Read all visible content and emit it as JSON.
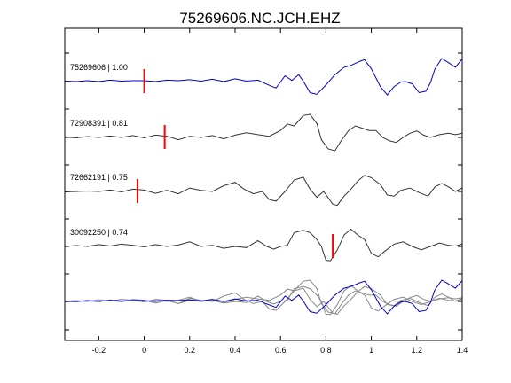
{
  "chart_data": {
    "type": "line",
    "title": "75269606.NC.JCH.EHZ",
    "xlim": [
      -0.35,
      1.4
    ],
    "x_ticks": [
      -0.2,
      0,
      0.2,
      0.4,
      0.6,
      0.8,
      1,
      1.2,
      1.4
    ],
    "x_tick_labels": [
      "-0.2",
      "0",
      "0.2",
      "0.4",
      "0.6",
      "0.8",
      "1",
      "1.2",
      "1.4"
    ],
    "grid": false,
    "colors": {
      "reference": "#0000cc",
      "others": "#333333",
      "overlay_others": "#888888",
      "pick": "#ff0000"
    },
    "series": [
      {
        "name": "75269606 | 1.00",
        "color": "#0000cc",
        "pick_time": 0.0,
        "points": [
          [
            -0.35,
            0.02
          ],
          [
            -0.3,
            0.0
          ],
          [
            -0.25,
            0.04
          ],
          [
            -0.2,
            0.0
          ],
          [
            -0.15,
            0.06
          ],
          [
            -0.1,
            0.02
          ],
          [
            -0.05,
            0.04
          ],
          [
            0.0,
            0.04
          ],
          [
            0.05,
            0.0
          ],
          [
            0.1,
            0.06
          ],
          [
            0.15,
            0.04
          ],
          [
            0.2,
            0.08
          ],
          [
            0.25,
            0.02
          ],
          [
            0.3,
            0.1
          ],
          [
            0.35,
            0.0
          ],
          [
            0.4,
            0.12
          ],
          [
            0.45,
            0.02
          ],
          [
            0.5,
            0.06
          ],
          [
            0.54,
            -0.12
          ],
          [
            0.58,
            -0.28
          ],
          [
            0.62,
            0.25
          ],
          [
            0.65,
            0.05
          ],
          [
            0.68,
            0.3
          ],
          [
            0.7,
            0.02
          ],
          [
            0.73,
            -0.48
          ],
          [
            0.76,
            -0.55
          ],
          [
            0.8,
            -0.15
          ],
          [
            0.84,
            0.3
          ],
          [
            0.88,
            0.62
          ],
          [
            0.91,
            0.7
          ],
          [
            0.95,
            0.88
          ],
          [
            0.97,
            0.95
          ],
          [
            1.0,
            0.55
          ],
          [
            1.04,
            -0.22
          ],
          [
            1.07,
            -0.58
          ],
          [
            1.1,
            -0.22
          ],
          [
            1.13,
            -0.02
          ],
          [
            1.15,
            0.0
          ],
          [
            1.18,
            -0.1
          ],
          [
            1.21,
            -0.48
          ],
          [
            1.24,
            -0.42
          ],
          [
            1.26,
            -0.05
          ],
          [
            1.28,
            0.55
          ],
          [
            1.31,
            1.0
          ],
          [
            1.34,
            0.82
          ],
          [
            1.37,
            0.62
          ],
          [
            1.4,
            0.98
          ]
        ]
      },
      {
        "name": "72908391 | 0.81",
        "color": "#333333",
        "pick_time": 0.09,
        "points": [
          [
            -0.35,
            0.02
          ],
          [
            -0.3,
            -0.02
          ],
          [
            -0.25,
            0.04
          ],
          [
            -0.2,
            0.0
          ],
          [
            -0.15,
            0.06
          ],
          [
            -0.1,
            0.0
          ],
          [
            -0.05,
            0.08
          ],
          [
            0.0,
            -0.02
          ],
          [
            0.05,
            0.1
          ],
          [
            0.1,
            0.05
          ],
          [
            0.15,
            -0.1
          ],
          [
            0.2,
            0.05
          ],
          [
            0.25,
            0.0
          ],
          [
            0.3,
            0.08
          ],
          [
            0.35,
            -0.06
          ],
          [
            0.4,
            0.1
          ],
          [
            0.45,
            0.2
          ],
          [
            0.5,
            0.12
          ],
          [
            0.55,
            0.05
          ],
          [
            0.6,
            0.3
          ],
          [
            0.63,
            0.58
          ],
          [
            0.66,
            0.5
          ],
          [
            0.7,
            0.95
          ],
          [
            0.73,
            1.0
          ],
          [
            0.76,
            0.6
          ],
          [
            0.78,
            -0.1
          ],
          [
            0.81,
            -0.5
          ],
          [
            0.84,
            -0.58
          ],
          [
            0.87,
            -0.1
          ],
          [
            0.9,
            0.3
          ],
          [
            0.93,
            0.5
          ],
          [
            0.96,
            0.4
          ],
          [
            0.99,
            0.3
          ],
          [
            1.02,
            0.3
          ],
          [
            1.05,
            0.0
          ],
          [
            1.08,
            -0.15
          ],
          [
            1.11,
            -0.22
          ],
          [
            1.14,
            0.0
          ],
          [
            1.17,
            0.18
          ],
          [
            1.2,
            0.28
          ],
          [
            1.23,
            0.1
          ],
          [
            1.26,
            0.0
          ],
          [
            1.3,
            0.12
          ],
          [
            1.34,
            0.18
          ],
          [
            1.37,
            0.12
          ],
          [
            1.4,
            0.18
          ]
        ]
      },
      {
        "name": "72662191 | 0.75",
        "color": "#333333",
        "pick_time": -0.03,
        "points": [
          [
            -0.35,
            -0.02
          ],
          [
            -0.3,
            0.0
          ],
          [
            -0.25,
            0.02
          ],
          [
            -0.2,
            0.0
          ],
          [
            -0.15,
            0.06
          ],
          [
            -0.1,
            -0.02
          ],
          [
            -0.05,
            0.1
          ],
          [
            0.0,
            0.06
          ],
          [
            0.05,
            -0.08
          ],
          [
            0.1,
            0.05
          ],
          [
            0.15,
            -0.1
          ],
          [
            0.2,
            0.15
          ],
          [
            0.25,
            0.05
          ],
          [
            0.3,
            0.0
          ],
          [
            0.35,
            0.25
          ],
          [
            0.4,
            0.4
          ],
          [
            0.44,
            0.1
          ],
          [
            0.48,
            -0.1
          ],
          [
            0.52,
            0.0
          ],
          [
            0.55,
            -0.35
          ],
          [
            0.58,
            -0.42
          ],
          [
            0.62,
            0.0
          ],
          [
            0.66,
            0.5
          ],
          [
            0.7,
            0.62
          ],
          [
            0.73,
            0.1
          ],
          [
            0.76,
            -0.25
          ],
          [
            0.79,
            0.0
          ],
          [
            0.83,
            -0.55
          ],
          [
            0.85,
            -0.6
          ],
          [
            0.88,
            -0.2
          ],
          [
            0.91,
            0.1
          ],
          [
            0.94,
            0.45
          ],
          [
            0.97,
            0.7
          ],
          [
            1.0,
            0.6
          ],
          [
            1.04,
            0.3
          ],
          [
            1.07,
            -0.15
          ],
          [
            1.1,
            -0.2
          ],
          [
            1.13,
            0.05
          ],
          [
            1.17,
            0.15
          ],
          [
            1.21,
            -0.05
          ],
          [
            1.25,
            -0.2
          ],
          [
            1.28,
            0.2
          ],
          [
            1.31,
            0.35
          ],
          [
            1.34,
            0.2
          ],
          [
            1.37,
            0.0
          ],
          [
            1.4,
            0.15
          ]
        ]
      },
      {
        "name": "30092250 | 0.74",
        "color": "#333333",
        "pick_time": 0.83,
        "points": [
          [
            -0.35,
            0.0
          ],
          [
            -0.3,
            0.04
          ],
          [
            -0.25,
            0.0
          ],
          [
            -0.2,
            0.08
          ],
          [
            -0.15,
            0.02
          ],
          [
            -0.1,
            0.1
          ],
          [
            -0.05,
            0.05
          ],
          [
            0.0,
            -0.02
          ],
          [
            0.05,
            0.08
          ],
          [
            0.1,
            0.0
          ],
          [
            0.15,
            0.06
          ],
          [
            0.2,
            0.2
          ],
          [
            0.25,
            0.0
          ],
          [
            0.3,
            0.05
          ],
          [
            0.35,
            -0.08
          ],
          [
            0.4,
            0.0
          ],
          [
            0.45,
            -0.05
          ],
          [
            0.5,
            0.25
          ],
          [
            0.54,
            0.0
          ],
          [
            0.57,
            -0.12
          ],
          [
            0.6,
            0.0
          ],
          [
            0.63,
            0.05
          ],
          [
            0.66,
            0.6
          ],
          [
            0.7,
            0.7
          ],
          [
            0.73,
            0.6
          ],
          [
            0.76,
            0.3
          ],
          [
            0.78,
            0.0
          ],
          [
            0.8,
            -0.6
          ],
          [
            0.82,
            -0.62
          ],
          [
            0.85,
            -0.15
          ],
          [
            0.88,
            0.5
          ],
          [
            0.91,
            0.75
          ],
          [
            0.94,
            0.5
          ],
          [
            0.97,
            0.3
          ],
          [
            1.0,
            -0.3
          ],
          [
            1.03,
            -0.45
          ],
          [
            1.06,
            -0.2
          ],
          [
            1.1,
            0.1
          ],
          [
            1.14,
            0.2
          ],
          [
            1.18,
            0.0
          ],
          [
            1.22,
            -0.15
          ],
          [
            1.26,
            0.0
          ],
          [
            1.3,
            0.15
          ],
          [
            1.34,
            0.05
          ],
          [
            1.37,
            0.02
          ],
          [
            1.4,
            0.1
          ]
        ]
      }
    ]
  }
}
